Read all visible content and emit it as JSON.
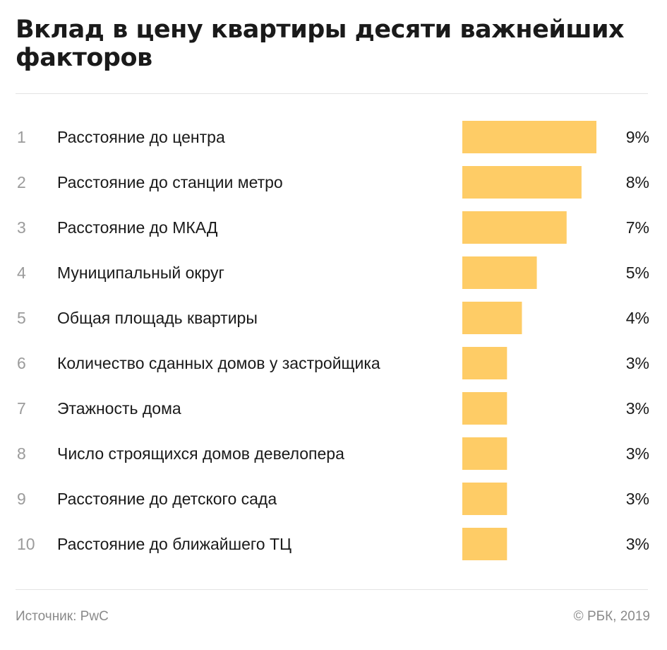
{
  "title": "Вклад в цену квартиры десяти важнейших факторов",
  "footer": {
    "source": "Источник: PwC",
    "copyright": "© РБК, 2019"
  },
  "colors": {
    "bar": "#fecc66",
    "rank": "#9b9b9b",
    "label": "#1a1a1a",
    "rule": "#e3e3e3"
  },
  "chart_data": {
    "type": "bar",
    "orientation": "horizontal",
    "title": "Вклад в цену квартиры десяти важнейших факторов",
    "ranks": [
      "1",
      "2",
      "3",
      "4",
      "5",
      "6",
      "7",
      "8",
      "9",
      "10"
    ],
    "categories": [
      "Расстояние до центра",
      "Расстояние до станции метро",
      "Расстояние до МКАД",
      "Муниципальный округ",
      "Общая площадь квартиры",
      "Количество сданных домов у застройщика",
      "Этажность дома",
      "Число строящихся домов девелопера",
      "Расстояние до детского сада",
      "Расстояние до ближайшего ТЦ"
    ],
    "values": [
      9,
      8,
      7,
      5,
      4,
      3,
      3,
      3,
      3,
      3
    ],
    "value_labels": [
      "9%",
      "8%",
      "7%",
      "5%",
      "4%",
      "3%",
      "3%",
      "3%",
      "3%",
      "3%"
    ],
    "unit": "%",
    "xlim": [
      0,
      9
    ],
    "grid": false,
    "legend": "none"
  }
}
